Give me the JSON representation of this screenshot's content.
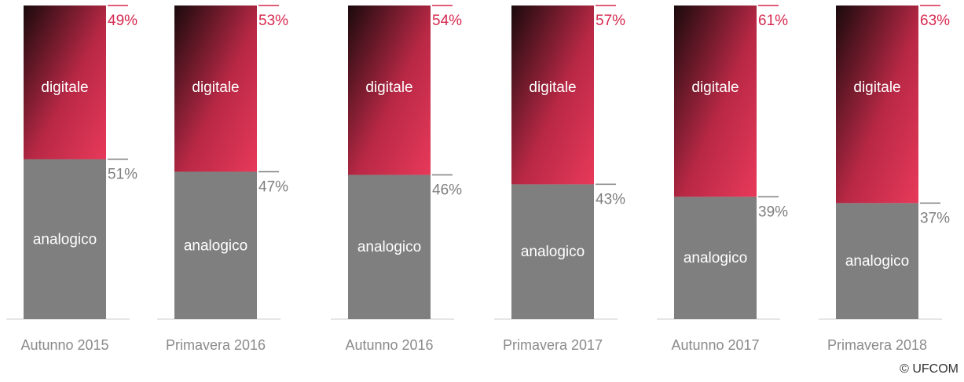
{
  "chart_data": {
    "type": "bar",
    "stacked": true,
    "categories": [
      "Autunno 2015",
      "Primavera 2016",
      "Autunno 2016",
      "Primavera 2017",
      "Autunno 2017",
      "Primavera 2018"
    ],
    "series": [
      {
        "name": "analogico",
        "color": "#7f7f7f",
        "values": [
          51,
          47,
          46,
          43,
          39,
          37
        ],
        "value_labels": [
          "51%",
          "47%",
          "46%",
          "43%",
          "39%",
          "37%"
        ]
      },
      {
        "name": "digitale",
        "color": "#e8395a",
        "values": [
          49,
          53,
          54,
          57,
          61,
          63
        ],
        "value_labels": [
          "49%",
          "53%",
          "54%",
          "57%",
          "61%",
          "63%"
        ]
      }
    ],
    "ylim": [
      0,
      100
    ],
    "source": "© UFCOM"
  }
}
